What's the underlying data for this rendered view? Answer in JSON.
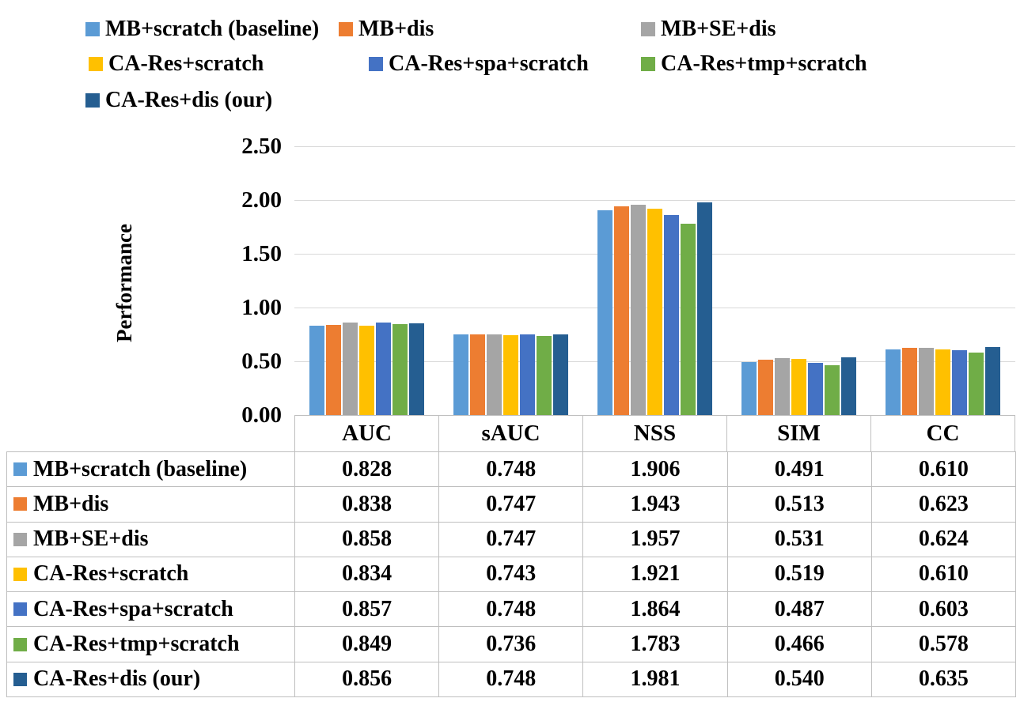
{
  "chart_data": {
    "type": "bar",
    "title": "",
    "ylabel": "Performance",
    "xlabel": "",
    "ylim": [
      0,
      2.5
    ],
    "ytick_labels": [
      "0.00",
      "0.50",
      "1.00",
      "1.50",
      "2.00",
      "2.50"
    ],
    "grid": true,
    "legend_position": "top",
    "data_table": true,
    "categories": [
      "AUC",
      "sAUC",
      "NSS",
      "SIM",
      "CC"
    ],
    "series": [
      {
        "name": "MB+scratch (baseline)",
        "color": "#5B9BD5",
        "values": [
          "0.828",
          "0.748",
          "1.906",
          "0.491",
          "0.610"
        ]
      },
      {
        "name": "MB+dis",
        "color": "#ED7D31",
        "values": [
          "0.838",
          "0.747",
          "1.943",
          "0.513",
          "0.623"
        ]
      },
      {
        "name": "MB+SE+dis",
        "color": "#A5A5A5",
        "values": [
          "0.858",
          "0.747",
          "1.957",
          "0.531",
          "0.624"
        ]
      },
      {
        "name": "CA-Res+scratch",
        "color": "#FFC000",
        "values": [
          "0.834",
          "0.743",
          "1.921",
          "0.519",
          "0.610"
        ]
      },
      {
        "name": "CA-Res+spa+scratch",
        "color": "#4472C4",
        "values": [
          "0.857",
          "0.748",
          "1.864",
          "0.487",
          "0.603"
        ]
      },
      {
        "name": "CA-Res+tmp+scratch",
        "color": "#70AD47",
        "values": [
          "0.849",
          "0.736",
          "1.783",
          "0.466",
          "0.578"
        ]
      },
      {
        "name": "CA-Res+dis (our)",
        "color": "#255E91",
        "values": [
          "0.856",
          "0.748",
          "1.981",
          "0.540",
          "0.635"
        ]
      }
    ],
    "gridline_color": "#D9D9D9",
    "table_border_color": "#BFBFBF"
  }
}
